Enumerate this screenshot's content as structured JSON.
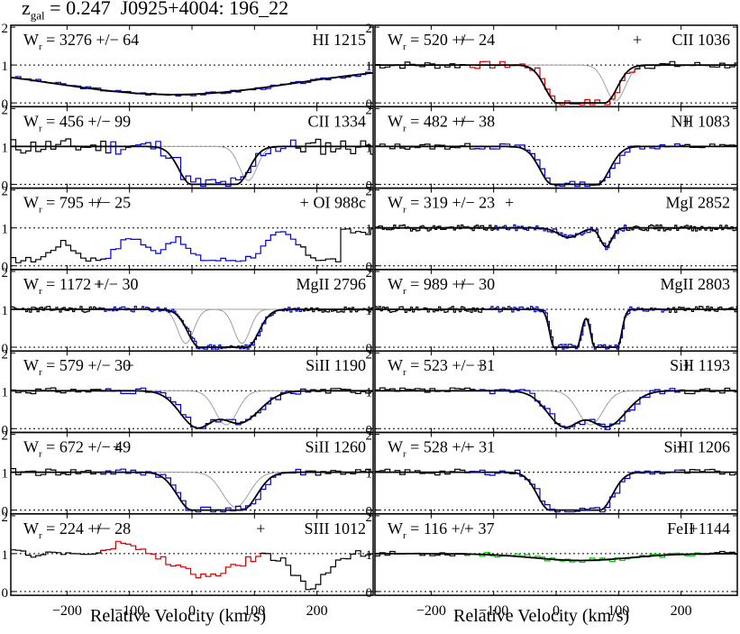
{
  "title": {
    "z_label": "z",
    "z_sub": "gal",
    "z_value": "= 0.247",
    "object": "J0925+4004: 196_22"
  },
  "chart_data": {
    "type": "line",
    "xlabel": "Relative Velocity (km/s)",
    "xlim": [
      -290,
      290
    ],
    "ylim": [
      -0.1,
      2.05
    ],
    "x_ticks": [
      -200,
      -100,
      0,
      100,
      200
    ],
    "y_ticks": [
      0,
      1,
      2
    ],
    "y_tick_labels": [
      "0",
      "1",
      "2"
    ],
    "dotted_levels": [
      0,
      1
    ],
    "colors": {
      "data": "#000000",
      "fit": "#000000",
      "component": "#a0a0a0",
      "blue": "#0000d8",
      "red": "#d80000",
      "green": "#00c800"
    },
    "panels": [
      {
        "col": 0,
        "row": 0,
        "wr_label": "W",
        "wr_sub": "r",
        "wr_text": "= 3276 +/−   64",
        "ion": "HI 1215",
        "spans": [
          {
            "from": -290,
            "to": 290,
            "color": "blue"
          }
        ],
        "lines": [
          {
            "type": "voigt",
            "center": -30,
            "depth": 0.78,
            "width": 190,
            "hw": 220
          }
        ],
        "ghosts": [],
        "plus": [],
        "noise": 0.04,
        "seed": 3
      },
      {
        "col": 1,
        "row": 0,
        "wr_label": "W",
        "wr_sub": "r",
        "wr_text": "= 520 +/−   24",
        "ion": "CII 1036",
        "spans": [
          {
            "from": -150,
            "to": -35,
            "color": "red"
          },
          {
            "from": -35,
            "to": 120,
            "color": "red"
          }
        ],
        "lines": [
          {
            "type": "sat",
            "center": 40,
            "depth": 1.0,
            "width": 38,
            "hw": 78
          }
        ],
        "ghosts": [
          {
            "center": 95,
            "depth": 0.95,
            "width": 22
          }
        ],
        "plus": [
          -150,
          130
        ],
        "noise": 0.1,
        "seed": 7
      },
      {
        "col": 0,
        "row": 1,
        "wr_label": "W",
        "wr_sub": "r",
        "wr_text": "= 456 +/−   99",
        "ion": "CII 1334",
        "spans": [
          {
            "from": -140,
            "to": 165,
            "color": "blue"
          }
        ],
        "lines": [
          {
            "type": "sat",
            "center": 35,
            "depth": 1.0,
            "width": 36,
            "hw": 80
          }
        ],
        "ghosts": [
          {
            "center": 90,
            "depth": 0.9,
            "width": 20
          }
        ],
        "plus": [],
        "noise": 0.22,
        "seed": 11
      },
      {
        "col": 1,
        "row": 1,
        "wr_label": "W",
        "wr_sub": "r",
        "wr_text": "= 482 +/−   38",
        "ion": "NII 1083",
        "spans": [
          {
            "from": -130,
            "to": 200,
            "color": "blue"
          }
        ],
        "lines": [
          {
            "type": "sat",
            "center": 30,
            "depth": 1.0,
            "width": 36,
            "hw": 80
          }
        ],
        "ghosts": [],
        "plus": [
          -150,
          210
        ],
        "noise": 0.08,
        "seed": 13
      },
      {
        "col": 0,
        "row": 2,
        "wr_label": "W",
        "wr_sub": "r",
        "wr_text": "= 795 +/−   25",
        "ion": "OI 988c",
        "spans": [
          {
            "from": -150,
            "to": 170,
            "color": "blue"
          }
        ],
        "lines": [],
        "custom": "oi",
        "ghosts": [],
        "plus": [
          -150,
          180
        ],
        "noise": 0.08,
        "seed": 17
      },
      {
        "col": 1,
        "row": 2,
        "wr_label": "W",
        "wr_sub": "r",
        "wr_text": "= 319 +/−   23",
        "ion": "MgI 2852",
        "spans": [
          {
            "from": -100,
            "to": 110,
            "color": "blue"
          }
        ],
        "lines": [
          {
            "type": "voigt",
            "center": 20,
            "depth": 0.25,
            "width": 15,
            "hw": 22
          },
          {
            "type": "voigt",
            "center": 80,
            "depth": 0.5,
            "width": 8,
            "hw": 12
          }
        ],
        "ghosts": [],
        "plus": [
          -75
        ],
        "noise": 0.08,
        "seed": 19,
        "fine": true
      },
      {
        "col": 0,
        "row": 3,
        "wr_label": "W",
        "wr_sub": "r",
        "wr_text": "= 1172 +/−   30",
        "ion": "MgII 2796",
        "spans": [
          {
            "from": -150,
            "to": 175,
            "color": "blue"
          }
        ],
        "lines": [
          {
            "type": "sat",
            "center": 50,
            "depth": 1.0,
            "width": 38,
            "hw": 75
          }
        ],
        "ghosts": [
          {
            "center": -10,
            "depth": 0.9,
            "width": 18
          },
          {
            "center": 80,
            "depth": 0.9,
            "width": 18
          }
        ],
        "plus": [
          -150
        ],
        "noise": 0.08,
        "seed": 23,
        "fine": true
      },
      {
        "col": 1,
        "row": 3,
        "wr_label": "W",
        "wr_sub": "r",
        "wr_text": "= 989 +/−   30",
        "ion": "MgII 2803",
        "spans": [
          {
            "from": -120,
            "to": 175,
            "color": "blue"
          }
        ],
        "lines": [
          {
            "type": "sat",
            "center": 15,
            "depth": 1.0,
            "width": 18,
            "hw": 30
          },
          {
            "type": "sat",
            "center": 80,
            "depth": 1.0,
            "width": 18,
            "hw": 28
          }
        ],
        "ghosts": [],
        "plus": [
          -150
        ],
        "noise": 0.08,
        "seed": 29,
        "fine": true
      },
      {
        "col": 0,
        "row": 4,
        "wr_label": "W",
        "wr_sub": "r",
        "wr_text": "= 579 +/−  30",
        "ion": "SiII 1190",
        "spans": [
          {
            "from": -140,
            "to": 180,
            "color": "blue"
          }
        ],
        "lines": [
          {
            "type": "voigt",
            "center": 10,
            "depth": 0.98,
            "width": 18,
            "hw": 55
          },
          {
            "type": "voigt",
            "center": 75,
            "depth": 0.85,
            "width": 22,
            "hw": 60
          }
        ],
        "ghosts": [
          {
            "center": 55,
            "depth": 0.9,
            "width": 25
          }
        ],
        "plus": [
          -100
        ],
        "noise": 0.08,
        "seed": 31
      },
      {
        "col": 1,
        "row": 4,
        "wr_label": "W",
        "wr_sub": "r",
        "wr_text": "= 523 +/−  31",
        "ion": "SiII 1193",
        "spans": [
          {
            "from": -140,
            "to": 190,
            "color": "blue"
          }
        ],
        "lines": [
          {
            "type": "voigt",
            "center": 15,
            "depth": 0.96,
            "width": 18,
            "hw": 55
          },
          {
            "type": "voigt",
            "center": 80,
            "depth": 0.95,
            "width": 20,
            "hw": 60
          }
        ],
        "ghosts": [
          {
            "center": 55,
            "depth": 0.9,
            "width": 28
          }
        ],
        "plus": [
          -120,
          210
        ],
        "noise": 0.08,
        "seed": 37
      },
      {
        "col": 0,
        "row": 5,
        "wr_label": "W",
        "wr_sub": "r",
        "wr_text": "= 672 +/−   49",
        "ion": "SiII 1260",
        "spans": [
          {
            "from": -150,
            "to": 175,
            "color": "blue"
          }
        ],
        "lines": [
          {
            "type": "sat",
            "center": 40,
            "depth": 1.0,
            "width": 40,
            "hw": 95
          }
        ],
        "ghosts": [
          {
            "center": 70,
            "depth": 0.92,
            "width": 30
          }
        ],
        "plus": [
          -120
        ],
        "noise": 0.1,
        "seed": 41
      },
      {
        "col": 1,
        "row": 5,
        "wr_label": "W",
        "wr_sub": "r",
        "wr_text": "= 528 +/−   31",
        "ion": "SiIII 1206",
        "spans": [
          {
            "from": -140,
            "to": 190,
            "color": "blue"
          }
        ],
        "lines": [
          {
            "type": "sat",
            "center": 30,
            "depth": 1.0,
            "width": 40,
            "hw": 80
          }
        ],
        "ghosts": [],
        "plus": [
          -140,
          200
        ],
        "noise": 0.08,
        "seed": 43
      },
      {
        "col": 0,
        "row": 6,
        "wr_label": "W",
        "wr_sub": "r",
        "wr_text": "= 224 +/−   28",
        "ion": "SIII 1012",
        "spans": [
          {
            "from": -150,
            "to": 105,
            "color": "red"
          }
        ],
        "lines": [],
        "custom": "siii",
        "ghosts": [],
        "plus": [
          -150,
          110
        ],
        "noise": 0.1,
        "seed": 47
      },
      {
        "col": 1,
        "row": 6,
        "wr_label": "W",
        "wr_sub": "r",
        "wr_text": "= 116 +/−   37",
        "ion": "FeII 1144",
        "spans": [
          {
            "from": -150,
            "to": 230,
            "color": "green"
          }
        ],
        "lines": [
          {
            "type": "voigt",
            "center": 40,
            "depth": 0.18,
            "width": 60,
            "hw": 120
          }
        ],
        "ghosts": [],
        "plus": [
          -140,
          220
        ],
        "noise": 0.06,
        "seed": 53
      }
    ]
  }
}
